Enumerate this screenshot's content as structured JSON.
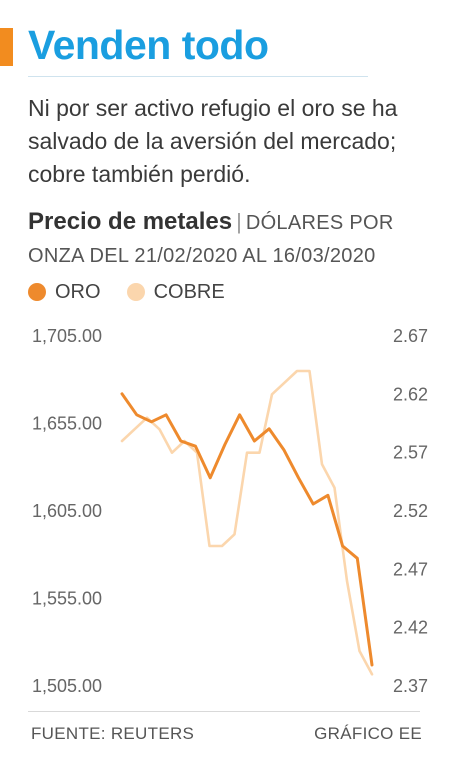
{
  "headline": "Venden todo",
  "subtitle": "Ni por ser activo refugio el oro se ha salvado de la aversión del mercado; cobre también perdió.",
  "chart_title": "Precio de metales",
  "chart_separator": "|",
  "chart_unit": "DÓLARES POR ONZA DEL 21/02/2020 AL 16/03/2020",
  "legend": [
    {
      "label": "ORO",
      "color": "#ee8a2d"
    },
    {
      "label": "COBRE",
      "color": "#fbd6ad"
    }
  ],
  "footer": {
    "source": "FUENTE: REUTERS",
    "credit": "GRÁFICO EE"
  },
  "colors": {
    "headline": "#1a9ee0",
    "accent": "#f28c1f",
    "gold": "#ee8a2d",
    "copper": "#fbd6ad"
  },
  "chart_data": {
    "type": "line",
    "x_start": "21/02/2020",
    "x_end": "16/03/2020",
    "y_left_ticks": [
      "1,705.00",
      "1,655.00",
      "1,605.00",
      "1,555.00",
      "1,505.00"
    ],
    "y_right_ticks": [
      "2.67",
      "2.62",
      "2.57",
      "2.52",
      "2.47",
      "2.42",
      "2.37"
    ],
    "y_left_range": [
      1505,
      1705
    ],
    "y_right_range": [
      2.37,
      2.67
    ],
    "grid": false,
    "series": [
      {
        "name": "ORO",
        "axis": "left",
        "values": [
          1672,
          1660,
          1656,
          1660,
          1645,
          1642,
          1624,
          1643,
          1660,
          1645,
          1652,
          1640,
          1624,
          1609,
          1614,
          1585,
          1578,
          1517
        ]
      },
      {
        "name": "COBRE",
        "axis": "right",
        "values": [
          2.58,
          2.59,
          2.6,
          2.59,
          2.57,
          2.58,
          2.57,
          2.49,
          2.49,
          2.5,
          2.57,
          2.57,
          2.62,
          2.63,
          2.64,
          2.64,
          2.56,
          2.54,
          2.46,
          2.4,
          2.38
        ]
      }
    ]
  }
}
